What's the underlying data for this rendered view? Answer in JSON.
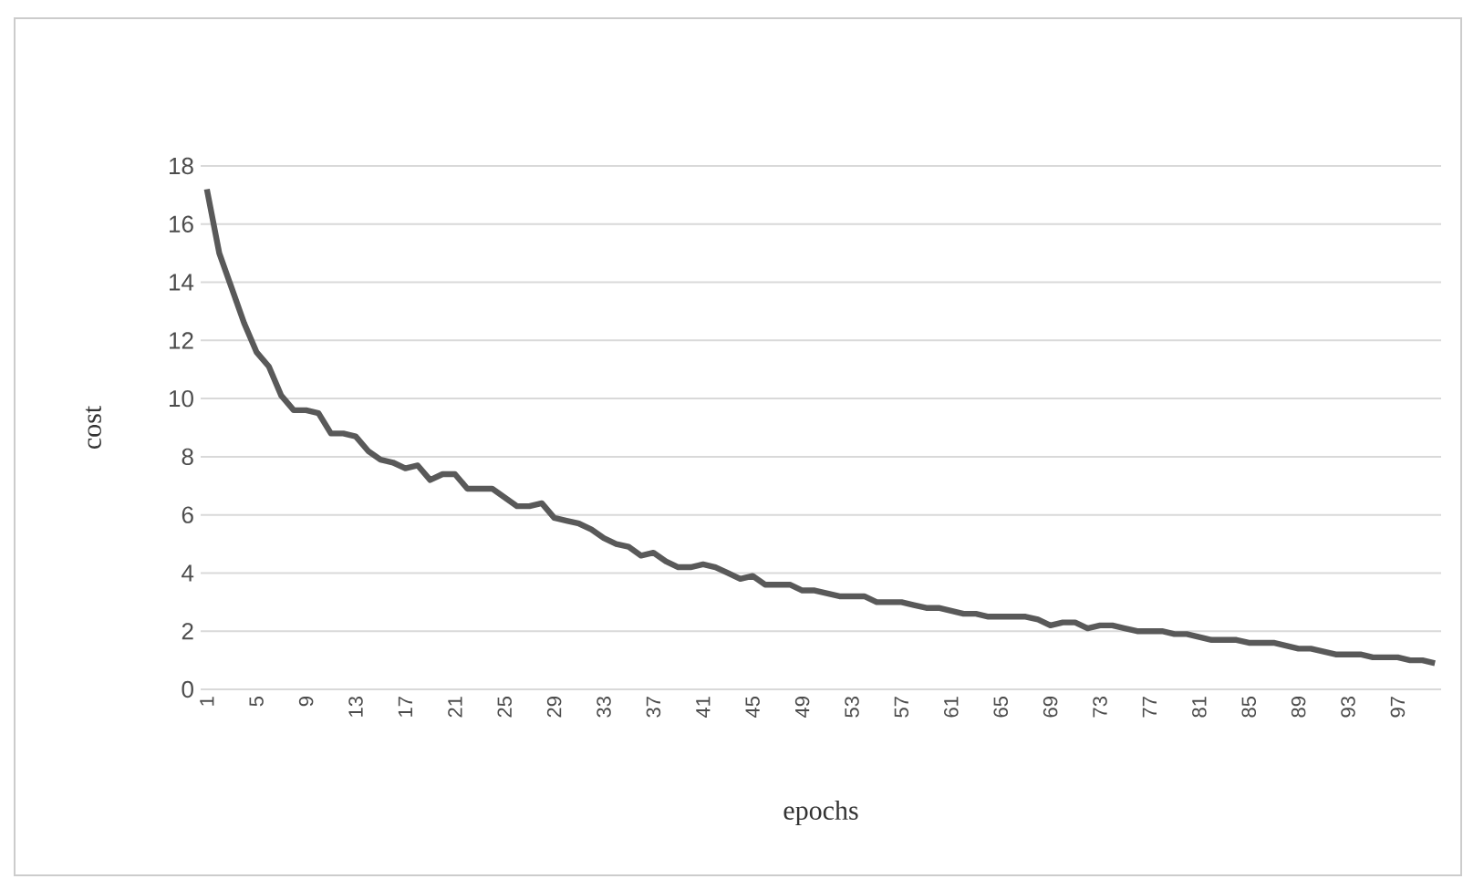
{
  "chart_data": {
    "type": "line",
    "xlabel": "epochs",
    "ylabel": "cost",
    "categories": [
      "1",
      null,
      null,
      null,
      "5",
      null,
      null,
      null,
      "9",
      null,
      null,
      null,
      "13",
      null,
      null,
      null,
      "17",
      null,
      null,
      null,
      "21",
      null,
      null,
      null,
      "25",
      null,
      null,
      null,
      "29",
      null,
      null,
      null,
      "33",
      null,
      null,
      null,
      "37",
      null,
      null,
      null,
      "41",
      null,
      null,
      null,
      "45",
      null,
      null,
      null,
      "49",
      null,
      null,
      null,
      "53",
      null,
      null,
      null,
      "57",
      null,
      null,
      null,
      "61",
      null,
      null,
      null,
      "65",
      null,
      null,
      null,
      "69",
      null,
      null,
      null,
      "73",
      null,
      null,
      null,
      "77",
      null,
      null,
      null,
      "81",
      null,
      null,
      null,
      "85",
      null,
      null,
      null,
      "89",
      null,
      null,
      null,
      "93",
      null,
      null,
      null,
      "97",
      null,
      null,
      null
    ],
    "series": [
      {
        "color": "#595959",
        "values": [
          17.2,
          15.0,
          13.8,
          12.6,
          11.6,
          11.1,
          10.1,
          9.6,
          9.6,
          9.5,
          8.8,
          8.8,
          8.7,
          8.2,
          7.9,
          7.8,
          7.6,
          7.7,
          7.2,
          7.4,
          7.4,
          6.9,
          6.9,
          6.9,
          6.6,
          6.3,
          6.3,
          6.4,
          5.9,
          5.8,
          5.7,
          5.5,
          5.2,
          5.0,
          4.9,
          4.6,
          4.7,
          4.4,
          4.2,
          4.2,
          4.3,
          4.2,
          4.0,
          3.8,
          3.9,
          3.6,
          3.6,
          3.6,
          3.4,
          3.4,
          3.3,
          3.2,
          3.2,
          3.2,
          3.0,
          3.0,
          3.0,
          2.9,
          2.8,
          2.8,
          2.7,
          2.6,
          2.6,
          2.5,
          2.5,
          2.5,
          2.5,
          2.4,
          2.2,
          2.3,
          2.3,
          2.1,
          2.2,
          2.2,
          2.1,
          2.0,
          2.0,
          2.0,
          1.9,
          1.9,
          1.8,
          1.7,
          1.7,
          1.7,
          1.6,
          1.6,
          1.6,
          1.5,
          1.4,
          1.4,
          1.3,
          1.2,
          1.2,
          1.2,
          1.1,
          1.1,
          1.1,
          1.0,
          1.0,
          0.9
        ]
      }
    ],
    "ylim": [
      0,
      18
    ],
    "yticks": [
      0,
      2,
      4,
      6,
      8,
      10,
      12,
      14,
      16,
      18
    ],
    "grid": "y",
    "marker": "none",
    "line_style": "solid"
  }
}
